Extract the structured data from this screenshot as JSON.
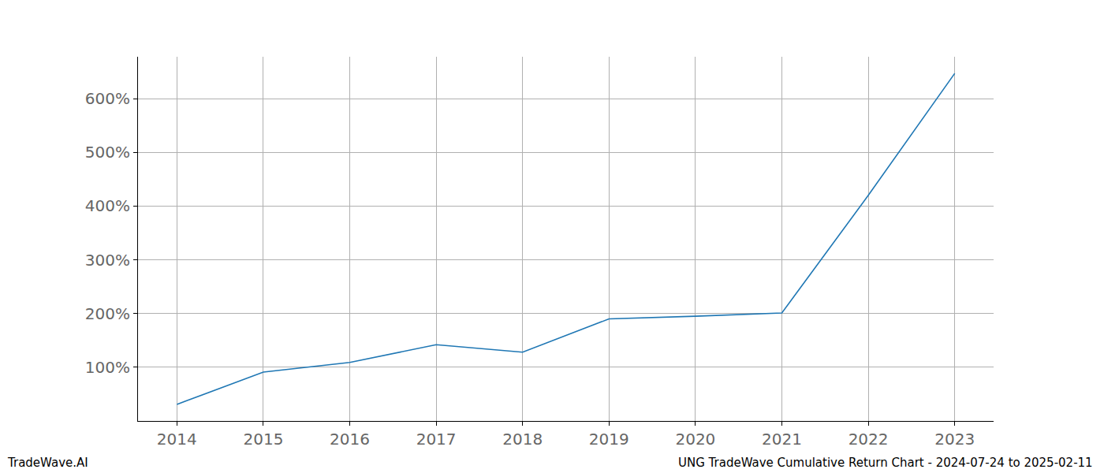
{
  "chart_data": {
    "type": "line",
    "x": [
      2014,
      2015,
      2016,
      2017,
      2018,
      2019,
      2020,
      2021,
      2022,
      2023
    ],
    "values": [
      31,
      91,
      109,
      142,
      128,
      190,
      195,
      201,
      420,
      647
    ],
    "color": "#1f77b4",
    "xlim": [
      2013.55,
      2023.45
    ],
    "xticks": [
      2014,
      2015,
      2016,
      2017,
      2018,
      2019,
      2020,
      2021,
      2022,
      2023
    ],
    "ylim": [
      0,
      678
    ],
    "yticks": [
      {
        "value": 100,
        "label": "100%"
      },
      {
        "value": 200,
        "label": "200%"
      },
      {
        "value": 300,
        "label": "300%"
      },
      {
        "value": 400,
        "label": "400%"
      },
      {
        "value": 500,
        "label": "500%"
      },
      {
        "value": 600,
        "label": "600%"
      }
    ],
    "grid": true,
    "annotations": [
      {
        "text": "TradeWave.AI"
      },
      {
        "text": "UNG TradeWave Cumulative Return Chart - 2024-07-24 to 2025-02-11"
      }
    ]
  }
}
